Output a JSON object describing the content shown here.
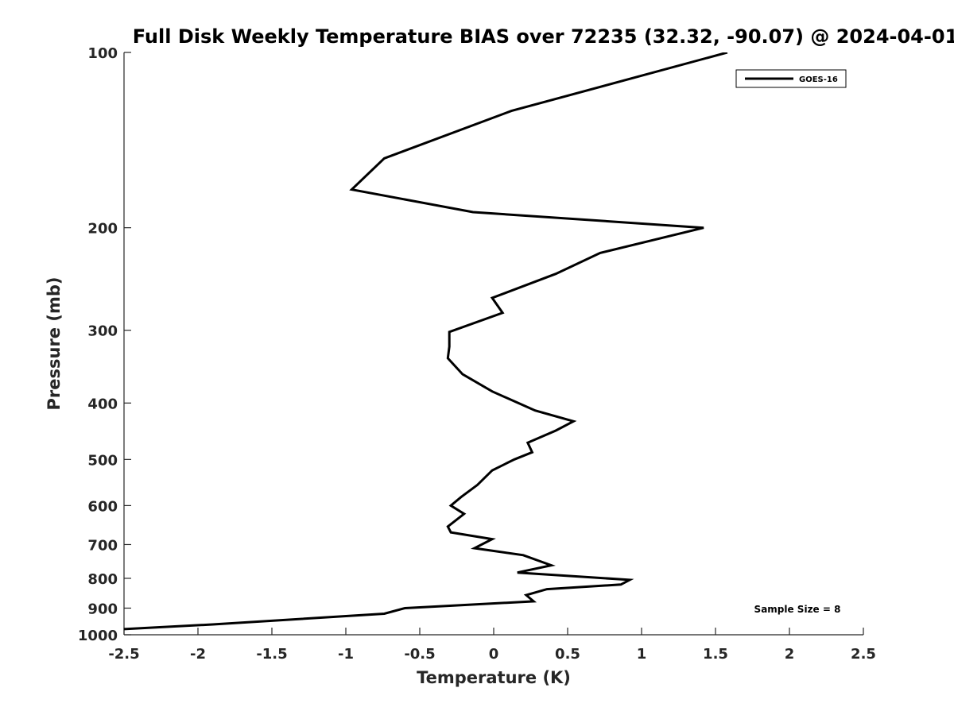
{
  "chart_data": {
    "type": "line",
    "title": "Full Disk Weekly Temperature BIAS over 72235 (32.32, -90.07) @ 2024-04-01",
    "xlabel": "Temperature (K)",
    "ylabel": "Pressure (mb)",
    "xlim": [
      -2.5,
      2.5
    ],
    "ylim": [
      100,
      1000
    ],
    "y_scale": "log",
    "y_reversed": true,
    "grid": false,
    "legend_position": "top-right",
    "x_ticks": [
      "-2.5",
      "-2",
      "-1.5",
      "-1",
      "-0.5",
      "0",
      "0.5",
      "1",
      "1.5",
      "2",
      "2.5"
    ],
    "y_ticks": [
      "100",
      "200",
      "300",
      "400",
      "500",
      "600",
      "700",
      "800",
      "900",
      "1000"
    ],
    "annotation": "Sample Size = 8",
    "series": [
      {
        "name": "GOES-16",
        "color": "#000000",
        "points": [
          {
            "x": 1.58,
            "y": 100
          },
          {
            "x": 0.12,
            "y": 126
          },
          {
            "x": -0.74,
            "y": 152
          },
          {
            "x": -0.96,
            "y": 172
          },
          {
            "x": -0.14,
            "y": 188
          },
          {
            "x": 1.42,
            "y": 200
          },
          {
            "x": 0.72,
            "y": 221
          },
          {
            "x": 0.42,
            "y": 240
          },
          {
            "x": -0.01,
            "y": 264
          },
          {
            "x": 0.06,
            "y": 280
          },
          {
            "x": -0.3,
            "y": 302
          },
          {
            "x": -0.3,
            "y": 320
          },
          {
            "x": -0.31,
            "y": 335
          },
          {
            "x": -0.21,
            "y": 357
          },
          {
            "x": -0.01,
            "y": 382
          },
          {
            "x": 0.28,
            "y": 412
          },
          {
            "x": 0.54,
            "y": 430
          },
          {
            "x": 0.42,
            "y": 446
          },
          {
            "x": 0.23,
            "y": 468
          },
          {
            "x": 0.26,
            "y": 486
          },
          {
            "x": 0.14,
            "y": 500
          },
          {
            "x": -0.01,
            "y": 522
          },
          {
            "x": -0.11,
            "y": 553
          },
          {
            "x": -0.22,
            "y": 580
          },
          {
            "x": -0.29,
            "y": 600
          },
          {
            "x": -0.2,
            "y": 620
          },
          {
            "x": -0.31,
            "y": 652
          },
          {
            "x": -0.29,
            "y": 667
          },
          {
            "x": -0.01,
            "y": 685
          },
          {
            "x": -0.13,
            "y": 710
          },
          {
            "x": 0.2,
            "y": 730
          },
          {
            "x": 0.39,
            "y": 760
          },
          {
            "x": 0.16,
            "y": 782
          },
          {
            "x": 0.92,
            "y": 805
          },
          {
            "x": 0.86,
            "y": 820
          },
          {
            "x": 0.36,
            "y": 835
          },
          {
            "x": 0.22,
            "y": 855
          },
          {
            "x": 0.27,
            "y": 876
          },
          {
            "x": -0.6,
            "y": 900
          },
          {
            "x": -0.74,
            "y": 920
          },
          {
            "x": -1.9,
            "y": 960
          },
          {
            "x": -2.5,
            "y": 978
          }
        ]
      }
    ]
  }
}
